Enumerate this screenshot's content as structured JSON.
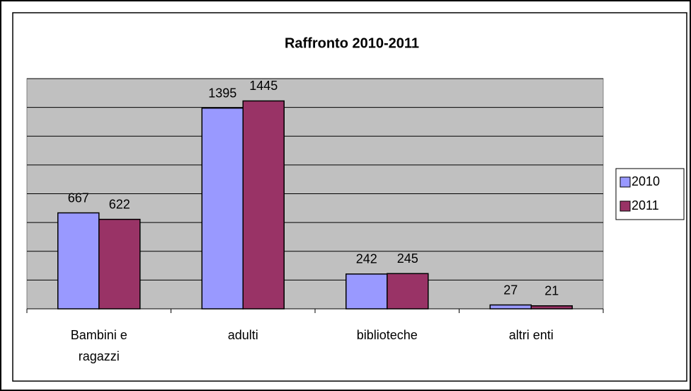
{
  "chart_data": {
    "type": "bar",
    "title": "Raffronto 2010-2011",
    "categories": [
      "Bambini e ragazzi",
      "adulti",
      "biblioteche",
      "altri enti"
    ],
    "series": [
      {
        "name": "2010",
        "color": "#9999ff",
        "values": [
          667,
          1395,
          242,
          27
        ]
      },
      {
        "name": "2011",
        "color": "#993366",
        "values": [
          622,
          1445,
          245,
          21
        ]
      }
    ],
    "ylim": [
      0,
      1600
    ],
    "yticks": [
      0,
      200,
      400,
      600,
      800,
      1000,
      1200,
      1400,
      1600
    ],
    "grid": true,
    "legend": "right"
  }
}
